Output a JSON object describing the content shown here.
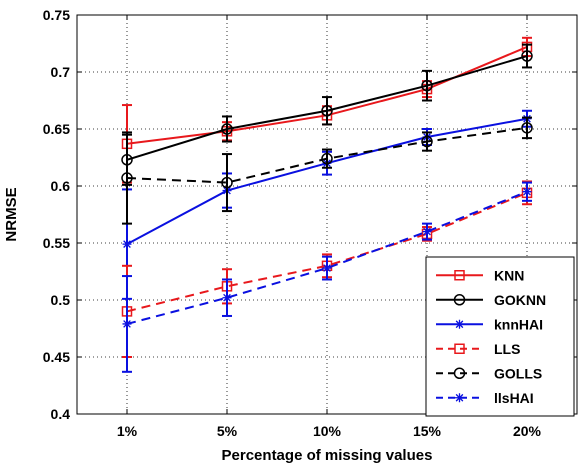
{
  "chart_data": {
    "type": "line",
    "title": "",
    "xlabel": "Percentage of missing values",
    "ylabel": "NRMSE",
    "categories": [
      "1%",
      "5%",
      "10%",
      "15%",
      "20%"
    ],
    "ylim": [
      0.4,
      0.75
    ],
    "yticks": [
      "0.4",
      "0.45",
      "0.5",
      "0.55",
      "0.6",
      "0.65",
      "0.7",
      "0.75"
    ],
    "grid": "dotted",
    "legend_position": "bottom-right",
    "series": [
      {
        "name": "KNN",
        "color": "#e8181c",
        "dash": "solid",
        "marker": "square",
        "values": [
          0.637,
          0.648,
          0.662,
          0.685,
          0.722
        ],
        "errors": [
          0.034,
          0.008,
          0.008,
          0.007,
          0.008
        ]
      },
      {
        "name": "GOKNN",
        "color": "#000000",
        "dash": "solid",
        "marker": "circle",
        "values": [
          0.623,
          0.65,
          0.666,
          0.688,
          0.714
        ],
        "errors": [
          0.022,
          0.011,
          0.012,
          0.013,
          0.01
        ]
      },
      {
        "name": "knnHAI",
        "color": "#0a10e0",
        "dash": "solid",
        "marker": "star",
        "values": [
          0.549,
          0.596,
          0.62,
          0.643,
          0.659
        ],
        "errors": [
          0.048,
          0.015,
          0.01,
          0.007,
          0.007
        ]
      },
      {
        "name": "LLS",
        "color": "#e8181c",
        "dash": "dashed",
        "marker": "square",
        "values": [
          0.49,
          0.512,
          0.53,
          0.558,
          0.594
        ],
        "errors": [
          0.04,
          0.015,
          0.01,
          0.006,
          0.01
        ]
      },
      {
        "name": "GOLLS",
        "color": "#000000",
        "dash": "dashed",
        "marker": "circle",
        "values": [
          0.607,
          0.603,
          0.624,
          0.639,
          0.651
        ],
        "errors": [
          0.04,
          0.025,
          0.008,
          0.008,
          0.009
        ]
      },
      {
        "name": "llsHAI",
        "color": "#0a10e0",
        "dash": "dashed",
        "marker": "star",
        "values": [
          0.479,
          0.502,
          0.528,
          0.56,
          0.595
        ],
        "errors": [
          0.042,
          0.016,
          0.01,
          0.007,
          0.008
        ]
      }
    ]
  }
}
